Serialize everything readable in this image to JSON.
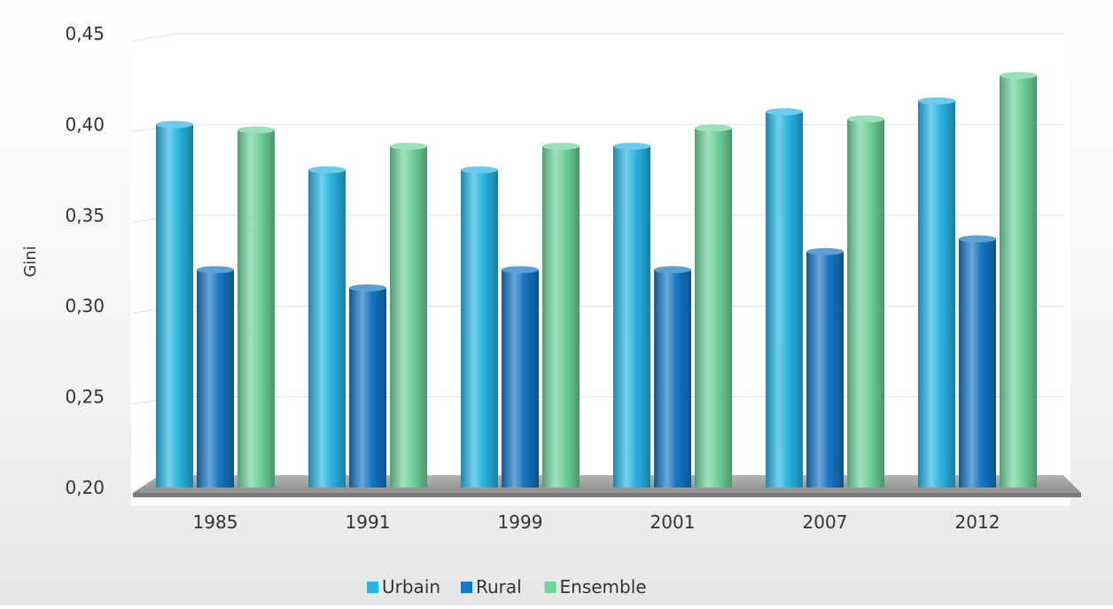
{
  "chart_data": {
    "type": "bar",
    "title": "",
    "xlabel": "",
    "ylabel": "Gini",
    "categories": [
      "1985",
      "1991",
      "1999",
      "2001",
      "2007",
      "2012"
    ],
    "series": [
      {
        "name": "Urbain",
        "color": "#2bb5e4",
        "values": [
          0.4,
          0.375,
          0.375,
          0.388,
          0.407,
          0.413
        ]
      },
      {
        "name": "Rural",
        "color": "#1678c4",
        "values": [
          0.32,
          0.31,
          0.32,
          0.32,
          0.33,
          0.337
        ]
      },
      {
        "name": "Ensemble",
        "color": "#6fd39b",
        "values": [
          0.397,
          0.388,
          0.388,
          0.398,
          0.403,
          0.427
        ]
      }
    ],
    "ylim": [
      0.2,
      0.45
    ],
    "y_ticks": [
      "0,20",
      "0,25",
      "0,30",
      "0,35",
      "0,40",
      "0,45"
    ],
    "grid": true,
    "legend_position": "bottom"
  }
}
